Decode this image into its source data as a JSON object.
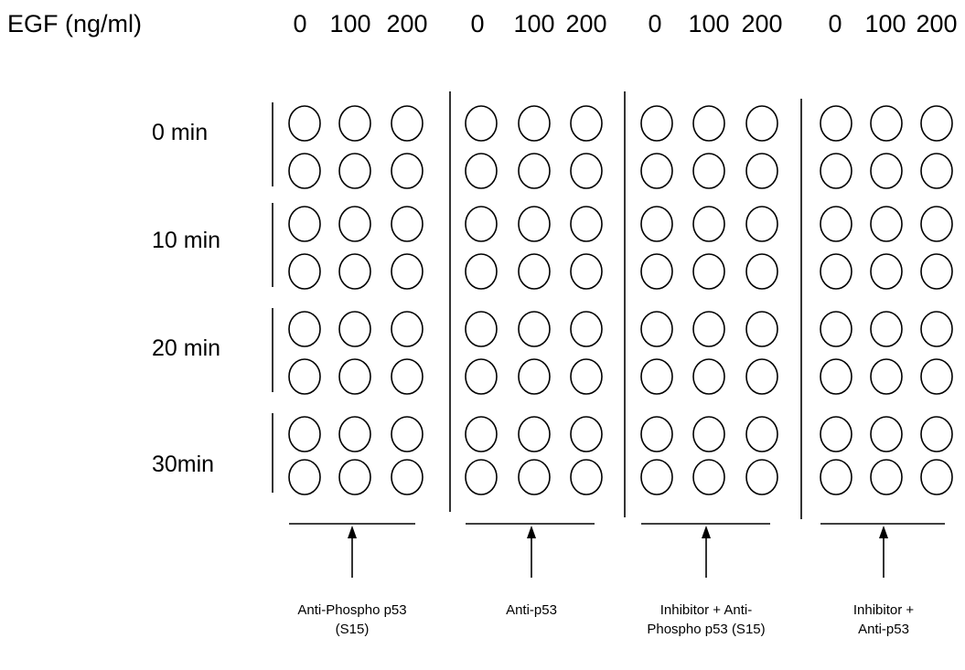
{
  "header": {
    "label": "EGF (ng/ml)",
    "column_groups": [
      [
        "0",
        "100",
        "200"
      ],
      [
        "0",
        "100",
        "200"
      ],
      [
        "0",
        "100",
        "200"
      ],
      [
        "0",
        "100",
        "200"
      ]
    ]
  },
  "time_points": [
    "0 min",
    "10 min",
    "20 min",
    "30min"
  ],
  "panels": [
    {
      "lines": [
        "Anti-Phospho p53",
        "(S15)"
      ]
    },
    {
      "lines": [
        "Anti-p53"
      ]
    },
    {
      "lines": [
        "Inhibitor + Anti-",
        "Phospho p53 (S15)"
      ]
    },
    {
      "lines": [
        "Inhibitor +",
        "Anti-p53"
      ]
    }
  ],
  "layout": {
    "rows_per_time_point": 2,
    "wells_per_row_per_panel": 3
  }
}
